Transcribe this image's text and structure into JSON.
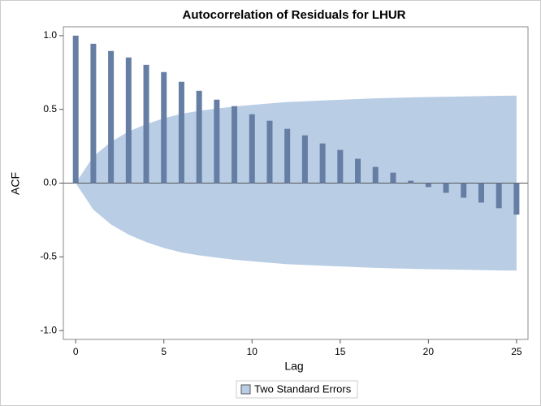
{
  "chart_data": {
    "type": "bar",
    "title": "Autocorrelation of Residuals for LHUR",
    "x_label": "Lag",
    "y_label": "ACF",
    "x": [
      0,
      1,
      2,
      3,
      4,
      5,
      6,
      7,
      8,
      9,
      10,
      11,
      12,
      13,
      14,
      15,
      16,
      17,
      18,
      19,
      20,
      21,
      22,
      23,
      24,
      25
    ],
    "series": [
      {
        "name": "ACF",
        "color": "#667ea4",
        "values": [
          1.0,
          0.945,
          0.896,
          0.852,
          0.802,
          0.753,
          0.687,
          0.626,
          0.566,
          0.522,
          0.467,
          0.423,
          0.368,
          0.324,
          0.269,
          0.225,
          0.165,
          0.11,
          0.071,
          0.016,
          -0.027,
          -0.066,
          -0.099,
          -0.132,
          -0.17,
          -0.214
        ]
      }
    ],
    "band": {
      "name": "Two Standard Errors",
      "color": "#b9cde5",
      "upper": [
        0,
        0.18,
        0.28,
        0.35,
        0.4,
        0.44,
        0.47,
        0.49,
        0.505,
        0.52,
        0.53,
        0.54,
        0.55,
        0.555,
        0.56,
        0.565,
        0.57,
        0.575,
        0.578,
        0.581,
        0.584,
        0.586,
        0.588,
        0.59,
        0.592,
        0.593
      ],
      "lower": [
        0,
        -0.18,
        -0.28,
        -0.35,
        -0.4,
        -0.44,
        -0.47,
        -0.49,
        -0.505,
        -0.52,
        -0.53,
        -0.54,
        -0.55,
        -0.555,
        -0.56,
        -0.565,
        -0.57,
        -0.575,
        -0.578,
        -0.581,
        -0.584,
        -0.586,
        -0.588,
        -0.59,
        -0.592,
        -0.593
      ]
    },
    "xlim": [
      -0.7,
      25.65
    ],
    "ylim": [
      -1.06,
      1.06
    ],
    "xticks": [
      0,
      5,
      10,
      15,
      20,
      25
    ],
    "yticks": [
      {
        "value": -1.0,
        "label": "-1.0"
      },
      -0.5,
      {
        "value": 0.0,
        "label": "0.0"
      },
      0.5,
      {
        "value": 1.0,
        "label": "1.0"
      }
    ]
  }
}
